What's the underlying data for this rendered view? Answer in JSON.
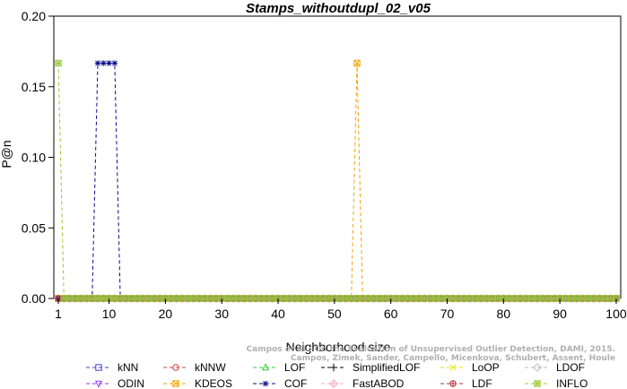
{
  "chart_data": {
    "type": "line",
    "title": "Stamps_withoutdupl_02_v05",
    "xlabel": "Neighborhood size",
    "ylabel": "P@n",
    "xlim": [
      1,
      100
    ],
    "ylim": [
      0,
      0.2
    ],
    "x_ticks": [
      1,
      10,
      20,
      30,
      40,
      50,
      60,
      70,
      80,
      90,
      100
    ],
    "y_ticks": [
      "0.00",
      "0.05",
      "0.10",
      "0.15",
      "0.20"
    ],
    "grid": false,
    "legend_placement": "bottom",
    "series": [
      {
        "name": "kNN",
        "color": "#3f3fd9",
        "marker": "square",
        "peaks": []
      },
      {
        "name": "kNNW",
        "color": "#d93f3f",
        "marker": "circle",
        "peaks": []
      },
      {
        "name": "LOF",
        "color": "#33cc33",
        "marker": "triangle-up",
        "peaks": []
      },
      {
        "name": "SimplifiedLOF",
        "color": "#000000",
        "marker": "plus",
        "peaks": []
      },
      {
        "name": "LoOP",
        "color": "#e6e600",
        "marker": "x",
        "peaks": []
      },
      {
        "name": "LDOF",
        "color": "#bbbbbb",
        "marker": "diamond",
        "peaks": []
      },
      {
        "name": "ODIN",
        "color": "#9933ff",
        "marker": "triangle-down",
        "peaks": []
      },
      {
        "name": "KDEOS",
        "color": "#f0a500",
        "marker": "square-x",
        "peaks": [
          [
            54,
            0.1667
          ]
        ]
      },
      {
        "name": "COF",
        "color": "#0a0a8c",
        "marker": "asterisk",
        "peaks": [
          [
            8,
            0.1667
          ],
          [
            9,
            0.1667
          ],
          [
            10,
            0.1667
          ],
          [
            11,
            0.1667
          ]
        ]
      },
      {
        "name": "FastABOD",
        "color": "#ffaacc",
        "marker": "diamond-plus",
        "peaks": []
      },
      {
        "name": "LDF",
        "color": "#b03030",
        "marker": "circle-plus",
        "peaks": []
      },
      {
        "name": "INFLO",
        "color": "#99cc33",
        "marker": "square-star",
        "peaks": [
          [
            1,
            0.1667
          ]
        ]
      }
    ]
  },
  "watermark": {
    "line1": "Campos et al.: On the Evaluation of Unsupervised Outlier Detection, DAMI, 2015.",
    "line2": "Campos, Zimek, Sander, Campello, Micenkova, Schubert, Assent, Houle"
  }
}
